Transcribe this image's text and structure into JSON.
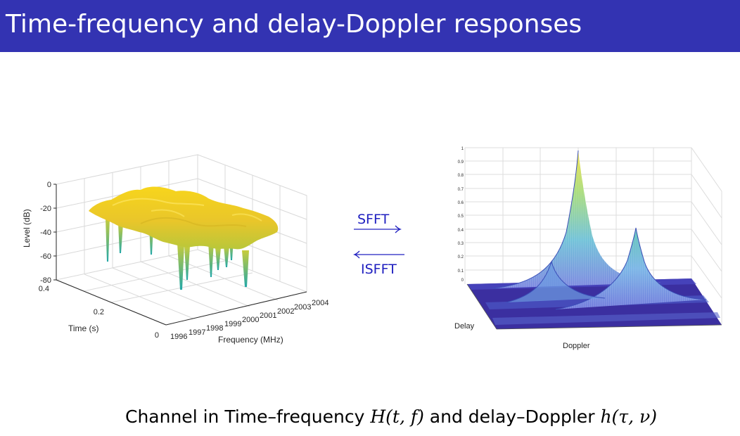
{
  "slide": {
    "title": "Time-frequency and delay-Doppler responses",
    "caption_text_1": "Channel in Time–frequency ",
    "caption_math_1": "H(t, f)",
    "caption_text_2": " and delay–Doppler ",
    "caption_math_2": "h(τ, ν)"
  },
  "colors": {
    "title_bg": "#3333b2",
    "arrow": "#2020c0",
    "surface_high": "#f5d21e",
    "surface_low": "#1fb0a8",
    "floor": "#3b2fa0"
  },
  "arrows": {
    "forward_label": "SFFT",
    "backward_label": "ISFFT"
  },
  "left_plot": {
    "zlabel": "Level (dB)",
    "ylabel": "Time (s)",
    "xlabel": "Frequency (MHz)",
    "z_ticks": [
      "0",
      "-20",
      "-40",
      "-60",
      "-80"
    ],
    "y_ticks": [
      "0.4",
      "0.2",
      "0"
    ],
    "x_ticks": [
      "1996",
      "1997",
      "1998",
      "1999",
      "2000",
      "2001",
      "2002",
      "2003",
      "2004"
    ]
  },
  "right_plot": {
    "xlabel": "Doppler",
    "ylabel": "Delay",
    "z_ticks": [
      "1",
      "0.9",
      "0.8",
      "0.7",
      "0.6",
      "0.5",
      "0.4",
      "0.3",
      "0.2",
      "0.1",
      "0"
    ]
  }
}
